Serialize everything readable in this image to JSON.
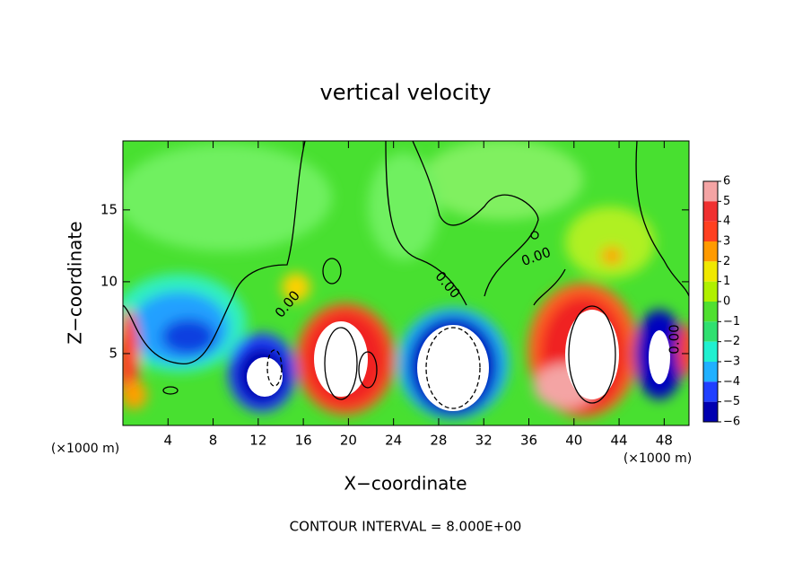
{
  "chart_data": {
    "type": "contour",
    "title": "vertical velocity",
    "x_label": "X−coordinate",
    "y_label": "Z−coordinate",
    "x_unit": "(×1000 m)",
    "footer": "CONTOUR INTERVAL = 8.000E+00",
    "xlim": [
      0,
      50.2
    ],
    "ylim": [
      0,
      19.8
    ],
    "xticks": [
      4,
      8,
      12,
      16,
      20,
      24,
      28,
      32,
      36,
      40,
      44,
      48
    ],
    "yticks": [
      5,
      10,
      15
    ],
    "contour_labels": [
      "0.00",
      "0.00",
      "0.00",
      "0.00"
    ],
    "colorbar_levels": [
      6,
      5,
      4,
      3,
      2,
      1,
      0,
      {
        "value": -1,
        "label": "−1"
      },
      {
        "value": -2,
        "label": "−2"
      },
      {
        "value": -3,
        "label": "−3"
      },
      {
        "value": -4,
        "label": "−4"
      },
      {
        "value": -5,
        "label": "−5"
      },
      {
        "value": -6,
        "label": "−6"
      }
    ],
    "colorbar_colors": [
      "#f4a4a4",
      "#f03030",
      "#ff4020",
      "#ff9a00",
      "#f0e800",
      "#b0f000",
      "#50e030",
      "#30e070",
      "#20f0d0",
      "#20b0ff",
      "#2040ff",
      "#0000b0"
    ]
  }
}
